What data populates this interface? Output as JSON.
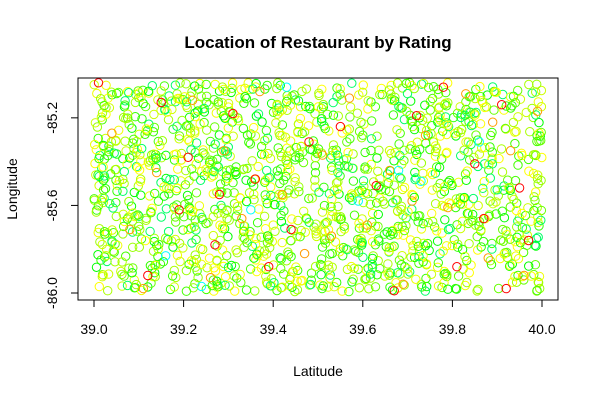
{
  "chart_data": {
    "type": "scatter",
    "title": "Location of Restaurant by Rating",
    "xlabel": "Latitude",
    "ylabel": "Longitude",
    "xlim": [
      39.0,
      40.0
    ],
    "ylim": [
      -86.0,
      -85.05
    ],
    "xticks": [
      39.0,
      39.2,
      39.4,
      39.6,
      39.8,
      40.0
    ],
    "xtick_labels": [
      "39.0",
      "39.2",
      "39.4",
      "39.6",
      "39.8",
      "40.0"
    ],
    "yticks": [
      -86.0,
      -85.6,
      -85.2
    ],
    "ytick_labels": [
      "-86.0",
      "-85.6",
      "-85.2"
    ],
    "grid": false,
    "legend": "none",
    "marker": "open-circle",
    "rating_colors": {
      "red": "#ff0000",
      "orange": "#ff9900",
      "yellow": "#ffff00",
      "yellow_green": "#ccff00",
      "lime": "#66ff00",
      "green": "#00ff00",
      "spring_green": "#00ff66",
      "cyan": "#00ffff"
    },
    "series": [
      {
        "color": "#ff0000",
        "x": [
          39.01,
          39.12,
          39.19,
          39.21,
          39.27,
          39.31,
          39.36,
          39.39,
          39.48,
          39.55,
          39.63,
          39.67,
          39.72,
          39.78,
          39.85,
          39.87,
          39.91,
          39.92,
          39.97,
          39.95,
          39.15,
          39.44,
          39.81,
          39.28
        ],
        "y": [
          -85.04,
          -85.92,
          -85.62,
          -85.38,
          -85.78,
          -85.18,
          -85.48,
          -85.88,
          -85.31,
          -85.24,
          -85.51,
          -85.99,
          -85.19,
          -85.06,
          -85.41,
          -85.66,
          -85.14,
          -85.98,
          -85.76,
          -85.52,
          -85.13,
          -85.71,
          -85.88,
          -85.55
        ]
      },
      {
        "color": "#ff9900",
        "x": [
          39.04,
          39.08,
          39.14,
          39.22,
          39.26,
          39.33,
          39.37,
          39.42,
          39.47,
          39.51,
          39.57,
          39.61,
          39.66,
          39.69,
          39.74,
          39.79,
          39.83,
          39.88,
          39.93,
          39.96,
          39.99,
          39.11,
          39.29,
          39.53,
          39.71,
          39.89
        ],
        "y": [
          -85.27,
          -85.71,
          -85.45,
          -85.12,
          -85.93,
          -85.66,
          -85.08,
          -85.55,
          -85.82,
          -85.37,
          -85.11,
          -85.69,
          -85.44,
          -85.96,
          -85.28,
          -85.61,
          -85.09,
          -85.84,
          -85.35,
          -85.92,
          -85.17,
          -85.98,
          -85.35,
          -85.74,
          -85.58,
          -85.22
        ]
      },
      {
        "color": "#00ffff",
        "x": [
          39.24,
          39.35,
          39.59,
          39.68,
          39.73,
          39.86,
          39.43,
          39.16
        ],
        "y": [
          -85.97,
          -85.62,
          -85.58,
          -85.44,
          -85.49,
          -85.31,
          -85.06,
          -85.83
        ]
      }
    ],
    "background_points": {
      "count": 1500,
      "colors": [
        "#00ff00",
        "#33ff00",
        "#66ff00",
        "#99ff00",
        "#ccff00",
        "#ffff00",
        "#00ff66",
        "#44ff00",
        "#aaff00",
        "#eeff00"
      ]
    }
  }
}
